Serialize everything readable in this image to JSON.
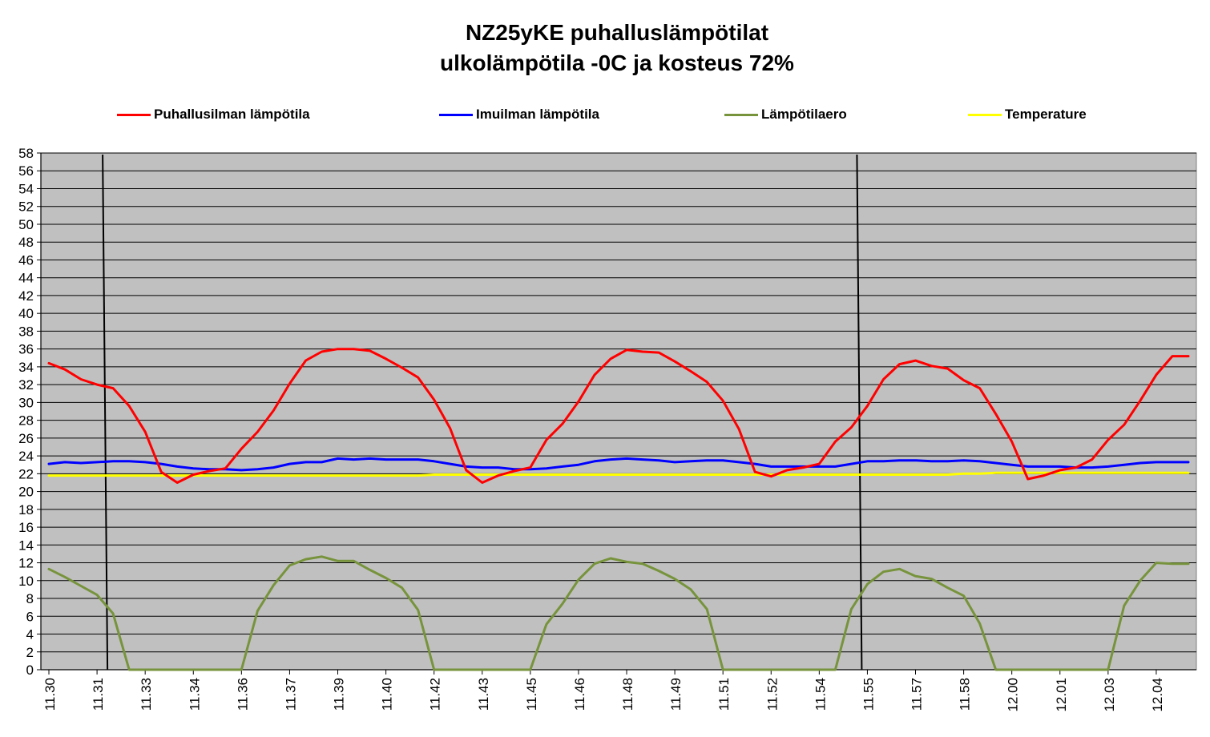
{
  "chart_data": {
    "type": "line",
    "title": "NZ25yKE puhalluslämpötilat",
    "subtitle": "ulkolämpötila -0C ja kosteus 72%",
    "xlabel": "",
    "ylabel": "",
    "ylim": [
      0,
      58
    ],
    "y_ticks": [
      0,
      2,
      4,
      6,
      8,
      10,
      12,
      14,
      16,
      18,
      20,
      22,
      24,
      26,
      28,
      30,
      32,
      34,
      36,
      38,
      40,
      42,
      44,
      46,
      48,
      50,
      52,
      54,
      56,
      58
    ],
    "x_tick_labels": [
      "11.30",
      "11.31",
      "11.33",
      "11.34",
      "11.36",
      "11.37",
      "11.39",
      "11.40",
      "11.42",
      "11.43",
      "11.45",
      "11.46",
      "11.48",
      "11.49",
      "11.51",
      "11.52",
      "11.54",
      "11.55",
      "11.57",
      "11.58",
      "12.00",
      "12.01",
      "12.03",
      "12.04"
    ],
    "num_points": 72,
    "grid": "horizontal",
    "legend_position": "top",
    "background": "#c0c0c0",
    "vertical_markers_at_index": [
      3.5,
      50.5
    ],
    "series": [
      {
        "name": "Puhallusilman lämpötila",
        "color": "#ff0000",
        "values": [
          34.4,
          33.7,
          32.6,
          32.0,
          31.6,
          29.6,
          26.7,
          22.2,
          21.0,
          21.9,
          22.3,
          22.6,
          24.8,
          26.7,
          29.1,
          32.1,
          34.7,
          35.7,
          36.0,
          36.0,
          35.8,
          34.9,
          33.9,
          32.8,
          30.3,
          27.1,
          22.4,
          21.0,
          21.8,
          22.3,
          22.7,
          25.8,
          27.6,
          30.1,
          33.1,
          34.9,
          35.9,
          35.7,
          35.6,
          34.6,
          33.5,
          32.3,
          30.2,
          27.0,
          22.2,
          21.7,
          22.4,
          22.7,
          23.1,
          25.6,
          27.2,
          29.6,
          32.6,
          34.3,
          34.7,
          34.1,
          33.8,
          32.5,
          31.6,
          28.7,
          25.6,
          21.4,
          21.8,
          22.4,
          22.7,
          23.6,
          25.8,
          27.5,
          30.2,
          33.1,
          35.2,
          35.2
        ]
      },
      {
        "name": "Imuilman lämpötila",
        "color": "#0000ff",
        "values": [
          23.1,
          23.3,
          23.2,
          23.3,
          23.4,
          23.4,
          23.3,
          23.1,
          22.8,
          22.6,
          22.5,
          22.5,
          22.4,
          22.5,
          22.7,
          23.1,
          23.3,
          23.3,
          23.7,
          23.6,
          23.7,
          23.6,
          23.6,
          23.6,
          23.4,
          23.1,
          22.8,
          22.7,
          22.7,
          22.5,
          22.5,
          22.6,
          22.8,
          23.0,
          23.4,
          23.6,
          23.7,
          23.6,
          23.5,
          23.3,
          23.4,
          23.5,
          23.5,
          23.3,
          23.1,
          22.8,
          22.8,
          22.8,
          22.8,
          22.8,
          23.1,
          23.4,
          23.4,
          23.5,
          23.5,
          23.4,
          23.4,
          23.5,
          23.4,
          23.2,
          23.0,
          22.8,
          22.8,
          22.8,
          22.7,
          22.7,
          22.8,
          23.0,
          23.2,
          23.3,
          23.3,
          23.3
        ]
      },
      {
        "name": "Lämpötilaero",
        "color": "#77933c",
        "values": [
          11.3,
          10.4,
          9.4,
          8.4,
          6.3,
          0.0,
          0.0,
          0.0,
          0.0,
          0.0,
          0.0,
          0.0,
          0.0,
          6.6,
          9.5,
          11.7,
          12.4,
          12.7,
          12.2,
          12.2,
          11.2,
          10.3,
          9.2,
          6.7,
          0.0,
          0.0,
          0.0,
          0.0,
          0.0,
          0.0,
          0.0,
          5.1,
          7.4,
          10.1,
          11.9,
          12.5,
          12.1,
          11.9,
          11.1,
          10.2,
          9.0,
          6.8,
          0.0,
          0.0,
          0.0,
          0.0,
          0.0,
          0.0,
          0.0,
          0.0,
          6.8,
          9.6,
          11.0,
          11.3,
          10.5,
          10.2,
          9.2,
          8.3,
          5.2,
          0.0,
          0.0,
          0.0,
          0.0,
          0.0,
          0.0,
          0.0,
          0.0,
          7.2,
          10.0,
          12.0,
          11.9,
          11.9
        ]
      },
      {
        "name": "Temperature",
        "color": "#ffff00",
        "values": [
          21.8,
          21.8,
          21.8,
          21.8,
          21.8,
          21.8,
          21.8,
          21.8,
          21.8,
          21.8,
          21.8,
          21.8,
          21.8,
          21.8,
          21.8,
          21.8,
          21.8,
          21.8,
          21.8,
          21.8,
          21.8,
          21.8,
          21.8,
          21.8,
          21.9,
          21.9,
          21.9,
          21.9,
          21.9,
          21.9,
          21.9,
          21.9,
          21.9,
          21.9,
          21.9,
          21.9,
          21.9,
          21.9,
          21.9,
          21.9,
          21.9,
          21.9,
          21.9,
          21.9,
          21.9,
          21.9,
          21.9,
          21.9,
          21.9,
          21.9,
          21.9,
          21.9,
          21.9,
          21.9,
          21.9,
          21.9,
          21.9,
          22.0,
          22.0,
          22.1,
          22.1,
          22.1,
          22.1,
          22.1,
          22.1,
          22.1,
          22.1,
          22.1,
          22.1,
          22.1,
          22.1,
          22.1
        ]
      }
    ]
  }
}
